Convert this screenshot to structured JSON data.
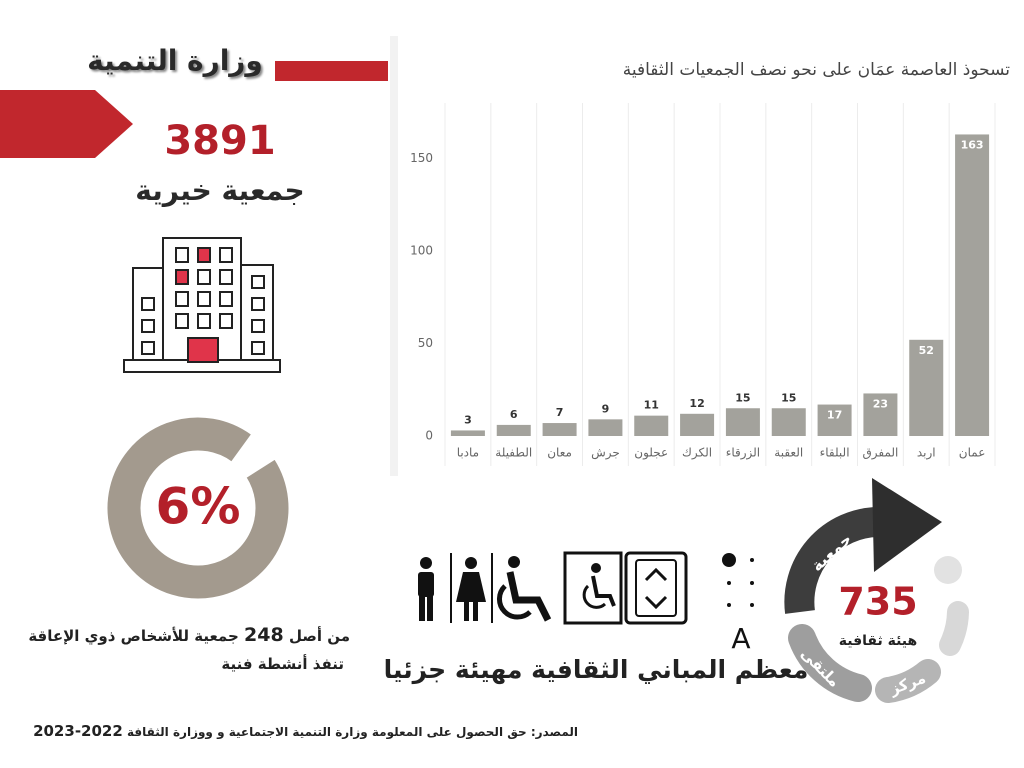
{
  "header": {
    "title": "وزارة التنمية"
  },
  "charities": {
    "count": 3891,
    "label": "جمعية  خيرية"
  },
  "note": {
    "prefix": "من أصل",
    "number": 248,
    "suffix": "جمعية للأشخاص ذوي الإعاقة",
    "line2": "تنفذ أنشطة فنية"
  },
  "chart_data": [
    {
      "type": "bar",
      "title": "تسحوذ العاصمة عمَان على نحو نصف الجمعيات الثقافية",
      "categories": [
        "مادبا",
        "الطفيلة",
        "معان",
        "جرش",
        "عجلون",
        "الكرك",
        "الزرقاء",
        "العقبة",
        "البلقاء",
        "المفرق",
        "اربد",
        "عمان"
      ],
      "values": [
        3,
        6,
        7,
        9,
        11,
        12,
        15,
        15,
        17,
        23,
        52,
        163
      ],
      "color": "#a3a29c",
      "ylim": [
        0,
        180
      ],
      "yticks": [
        0,
        50,
        100,
        150
      ]
    },
    {
      "type": "pie",
      "values": [
        6,
        94
      ],
      "value_labels": [
        "6%",
        null
      ],
      "colors": [
        "#ffffff",
        "#a39a8e"
      ]
    }
  ],
  "cultural": {
    "count": 735,
    "label": "هيئة ثقافية",
    "segments": [
      "جمعية",
      "ملتقى",
      "مركز"
    ]
  },
  "accessibility": {
    "letter": "A",
    "caption": "معظم المباني الثقافية مهيئة جزئيا"
  },
  "source": {
    "text": "المصدر: حق الحصول على المعلومة  وزارة التنمية الاجتماعية و ووزارة الثقافة",
    "years": "2022-2023"
  }
}
